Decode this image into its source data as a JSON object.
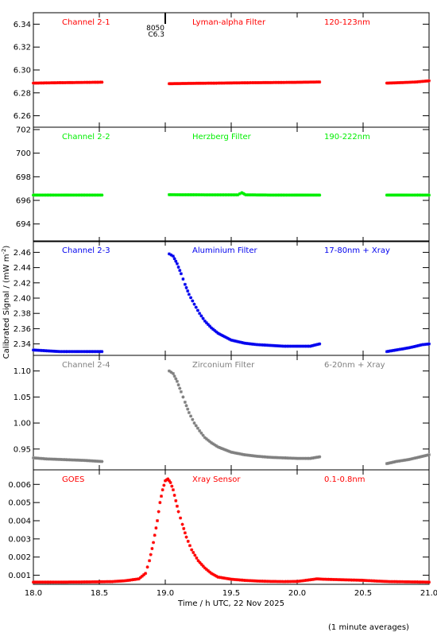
{
  "chart_data": {
    "type": "scatter",
    "x_axis": {
      "label": "Time / h UTC, 22 Nov 2025",
      "range": [
        18.0,
        21.0
      ],
      "ticks": [
        "18.0",
        "18.5",
        "19.0",
        "19.5",
        "20.0",
        "20.5",
        "21.0"
      ],
      "tick_values": [
        18.0,
        18.5,
        19.0,
        19.5,
        20.0,
        20.5,
        21.0
      ]
    },
    "y_axis_label": "Calibrated Signal / (mW m",
    "y_axis_label_sup": "-2",
    "y_axis_label_end": ")",
    "footnote": "(1 minute averages)",
    "event": {
      "time": 19.0,
      "label_number": "8050",
      "label_class": "C6.3"
    },
    "panels": [
      {
        "channel": "Channel 2-1",
        "filter": "Lyman-alpha Filter",
        "band": "120-123nm",
        "color": "#ff0000",
        "ylim": [
          6.25,
          6.35
        ],
        "yticks": [
          "6.26",
          "6.28",
          "6.30",
          "6.32",
          "6.34"
        ],
        "ytick_values": [
          6.26,
          6.28,
          6.3,
          6.32,
          6.34
        ],
        "series": [
          {
            "x": [
              18.0,
              18.15,
              18.3,
              18.45,
              18.52
            ],
            "y": [
              6.2885,
              6.2888,
              6.289,
              6.2892,
              6.2893
            ]
          },
          {
            "x": [
              19.03,
              19.2,
              19.4,
              19.6,
              19.8,
              20.0,
              20.17
            ],
            "y": [
              6.288,
              6.2883,
              6.2885,
              6.2888,
              6.289,
              6.2892,
              6.2895
            ]
          },
          {
            "x": [
              20.68,
              20.8,
              20.9,
              21.0
            ],
            "y": [
              6.2885,
              6.289,
              6.2895,
              6.2905
            ]
          }
        ]
      },
      {
        "channel": "Channel 2-2",
        "filter": "Herzberg Filter",
        "band": "190-222nm",
        "color": "#00ee00",
        "ylim": [
          692.5,
          702.2
        ],
        "yticks": [
          "694",
          "696",
          "698",
          "700",
          "702"
        ],
        "ytick_values": [
          694,
          696,
          698,
          700,
          702
        ],
        "series": [
          {
            "x": [
              18.0,
              18.2,
              18.4,
              18.52
            ],
            "y": [
              696.45,
              696.45,
              696.45,
              696.45
            ]
          },
          {
            "x": [
              19.03,
              19.3,
              19.55,
              19.58,
              19.61,
              19.8,
              20.0,
              20.17
            ],
            "y": [
              696.48,
              696.47,
              696.47,
              696.65,
              696.47,
              696.45,
              696.45,
              696.45
            ]
          },
          {
            "x": [
              20.68,
              20.85,
              21.0
            ],
            "y": [
              696.45,
              696.45,
              696.45
            ]
          }
        ]
      },
      {
        "channel": "Channel 2-3",
        "filter": "Aluminium Filter",
        "band": "17-80nm + Xray",
        "color": "#0000ee",
        "ylim": [
          2.325,
          2.475
        ],
        "yticks": [
          "2.34",
          "2.36",
          "2.38",
          "2.40",
          "2.42",
          "2.44",
          "2.46"
        ],
        "ytick_values": [
          2.34,
          2.36,
          2.38,
          2.4,
          2.42,
          2.44,
          2.46
        ],
        "series": [
          {
            "x": [
              18.0,
              18.1,
              18.2,
              18.3,
              18.4,
              18.52
            ],
            "y": [
              2.332,
              2.331,
              2.33,
              2.33,
              2.33,
              2.33
            ]
          },
          {
            "x": [
              19.03,
              19.06,
              19.09,
              19.12,
              19.15,
              19.18,
              19.22,
              19.26,
              19.3,
              19.35,
              19.4,
              19.5,
              19.6,
              19.7,
              19.8,
              19.9,
              20.0,
              20.1,
              20.17
            ],
            "y": [
              2.458,
              2.455,
              2.445,
              2.432,
              2.418,
              2.405,
              2.392,
              2.38,
              2.37,
              2.361,
              2.354,
              2.345,
              2.341,
              2.339,
              2.338,
              2.337,
              2.337,
              2.337,
              2.34
            ]
          },
          {
            "x": [
              20.68,
              20.75,
              20.85,
              20.95,
              21.0
            ],
            "y": [
              2.33,
              2.332,
              2.335,
              2.339,
              2.34
            ]
          }
        ]
      },
      {
        "channel": "Channel 2-4",
        "filter": "Zirconium Filter",
        "band": "6-20nm + Xray",
        "color": "#808080",
        "ylim": [
          0.91,
          1.13
        ],
        "yticks": [
          "0.95",
          "1.00",
          "1.05",
          "1.10"
        ],
        "ytick_values": [
          0.95,
          1.0,
          1.05,
          1.1
        ],
        "series": [
          {
            "x": [
              18.0,
              18.1,
              18.2,
              18.3,
              18.4,
              18.52
            ],
            "y": [
              0.933,
              0.931,
              0.93,
              0.929,
              0.928,
              0.926
            ]
          },
          {
            "x": [
              19.03,
              19.06,
              19.09,
              19.12,
              19.15,
              19.18,
              19.22,
              19.26,
              19.3,
              19.35,
              19.4,
              19.5,
              19.6,
              19.7,
              19.8,
              19.9,
              20.0,
              20.1,
              20.17
            ],
            "y": [
              1.1,
              1.095,
              1.08,
              1.06,
              1.04,
              1.02,
              1.0,
              0.985,
              0.972,
              0.962,
              0.954,
              0.944,
              0.939,
              0.936,
              0.934,
              0.933,
              0.932,
              0.932,
              0.935
            ]
          },
          {
            "x": [
              20.68,
              20.75,
              20.85,
              20.95,
              21.0
            ],
            "y": [
              0.922,
              0.926,
              0.93,
              0.936,
              0.939
            ]
          }
        ]
      },
      {
        "channel": "GOES",
        "filter": "Xray Sensor",
        "band": "0.1-0.8nm",
        "color": "#ff0000",
        "ylim": [
          0.0005,
          0.0068
        ],
        "yticks": [
          "0.001",
          "0.002",
          "0.003",
          "0.004",
          "0.005",
          "0.006"
        ],
        "ytick_values": [
          0.001,
          0.002,
          0.003,
          0.004,
          0.005,
          0.006
        ],
        "series": [
          {
            "x": [
              18.0,
              18.2,
              18.4,
              18.6,
              18.7,
              18.8,
              18.85,
              18.88,
              18.91,
              18.94,
              18.96,
              18.98,
              19.0,
              19.02,
              19.04,
              19.06,
              19.08,
              19.1,
              19.13,
              19.16,
              19.2,
              19.25,
              19.3,
              19.35,
              19.4,
              19.5,
              19.6,
              19.7,
              19.8,
              19.9,
              20.0,
              20.1,
              20.15,
              20.2,
              20.3,
              20.4,
              20.5,
              20.6,
              20.7,
              20.8,
              20.9,
              21.0
            ],
            "y": [
              0.00062,
              0.00062,
              0.00063,
              0.00065,
              0.0007,
              0.0008,
              0.0011,
              0.0018,
              0.0028,
              0.004,
              0.005,
              0.0057,
              0.0062,
              0.0063,
              0.0061,
              0.0057,
              0.0051,
              0.0045,
              0.0038,
              0.0031,
              0.0024,
              0.0018,
              0.0014,
              0.0011,
              0.0009,
              0.00078,
              0.00072,
              0.00068,
              0.00066,
              0.00065,
              0.00066,
              0.00075,
              0.0008,
              0.00078,
              0.00076,
              0.00074,
              0.00072,
              0.00068,
              0.00065,
              0.00064,
              0.00063,
              0.00062
            ]
          }
        ]
      }
    ]
  }
}
